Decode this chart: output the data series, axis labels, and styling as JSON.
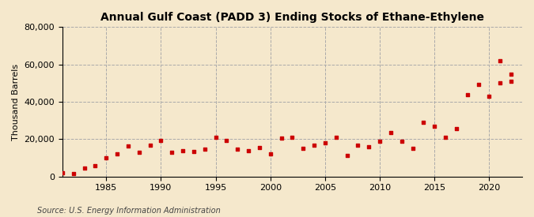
{
  "title": "Annual Gulf Coast (PADD 3) Ending Stocks of Ethane-Ethylene",
  "ylabel": "Thousand Barrels",
  "source": "Source: U.S. Energy Information Administration",
  "background_color": "#f5e8cc",
  "plot_bg_color": "#f5e8cc",
  "marker_color": "#cc0000",
  "marker_size": 9,
  "xlim": [
    1981,
    2023
  ],
  "ylim": [
    0,
    80000
  ],
  "yticks": [
    0,
    20000,
    40000,
    60000,
    80000
  ],
  "ytick_labels": [
    "0",
    "20,000",
    "40,000",
    "60,000",
    "80,000"
  ],
  "xticks": [
    1985,
    1990,
    1995,
    2000,
    2005,
    2010,
    2015,
    2020
  ],
  "grid_color": "#aaaaaa",
  "years": [
    1981,
    1982,
    1983,
    1984,
    1985,
    1986,
    1987,
    1988,
    1989,
    1990,
    1991,
    1992,
    1993,
    1994,
    1995,
    1996,
    1997,
    1998,
    1999,
    2000,
    2001,
    2002,
    2003,
    2004,
    2005,
    2006,
    2007,
    2008,
    2009,
    2010,
    2011,
    2012,
    2013,
    2014,
    2015,
    2016,
    2017,
    2018,
    2019,
    2020,
    2021,
    2022
  ],
  "values": [
    2200,
    1500,
    4500,
    6000,
    10000,
    12000,
    16500,
    13000,
    17000,
    19500,
    13000,
    14000,
    13500,
    14500,
    21000,
    19500,
    14500,
    14000,
    15500,
    12000,
    20500,
    21000,
    15000,
    17000,
    18000,
    21000,
    11500,
    17000,
    16000,
    19000,
    23500,
    19000,
    15000,
    29000,
    27000,
    21000,
    25500,
    44000,
    49500,
    43000,
    50000,
    51000
  ]
}
